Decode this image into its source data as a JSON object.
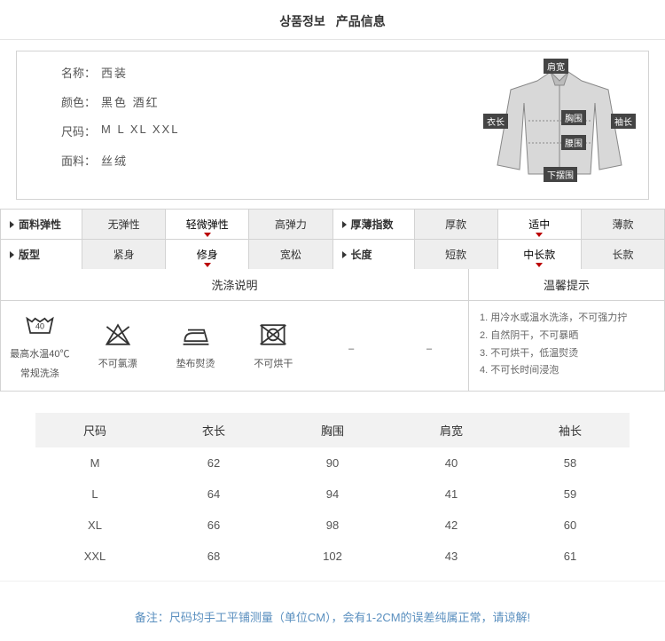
{
  "title": {
    "kr": "상품정보",
    "cn": "产品信息"
  },
  "info": {
    "name_label": "名称：",
    "name_value": "西装",
    "color_label": "颜色：",
    "color_value": "黑色   酒红",
    "size_label": "尺码：",
    "size_value": "M  L  XL   XXL",
    "fabric_label": "面料：",
    "fabric_value": "丝绒"
  },
  "diagram_tags": {
    "shoulder": "肩宽",
    "length": "衣长",
    "chest": "胸围",
    "waist": "腰围",
    "hem": "下摆围",
    "sleeve": "袖长"
  },
  "strip1": {
    "head": "面料弹性",
    "cells": [
      "无弹性",
      "轻微弹性",
      "高弹力"
    ],
    "active_index": 1,
    "head2": "厚薄指数",
    "cells2": [
      "厚款",
      "适中",
      "薄款"
    ],
    "active2_index": 1
  },
  "strip2": {
    "head": "版型",
    "cells": [
      "紧身",
      "修身",
      "宽松"
    ],
    "active_index": 1,
    "head2": "长度",
    "cells2": [
      "短款",
      "中长款",
      "长款"
    ],
    "active2_index": 1
  },
  "wash": {
    "title": "洗涤说明",
    "items": [
      {
        "label1": "最高水温40℃",
        "label2": "常规洗涤",
        "icon": "wash40"
      },
      {
        "label1": "不可氯漂",
        "label2": "",
        "icon": "nobleach"
      },
      {
        "label1": "垫布熨烫",
        "label2": "",
        "icon": "iron"
      },
      {
        "label1": "不可烘干",
        "label2": "",
        "icon": "notumble"
      },
      {
        "label1": "–",
        "label2": "",
        "icon": "dash"
      },
      {
        "label1": "–",
        "label2": "",
        "icon": "dash"
      }
    ]
  },
  "tips": {
    "title": "温馨提示",
    "lines": [
      "1. 用冷水或温水洗涤，不可强力拧",
      "2. 自然阴干，不可暴晒",
      "3. 不可烘干，低温熨烫",
      "4. 不可长时间浸泡"
    ]
  },
  "size_table": {
    "columns": [
      "尺码",
      "衣长",
      "胸围",
      "肩宽",
      "袖长"
    ],
    "rows": [
      [
        "M",
        "62",
        "90",
        "40",
        "58"
      ],
      [
        "L",
        "64",
        "94",
        "41",
        "59"
      ],
      [
        "XL",
        "66",
        "98",
        "42",
        "60"
      ],
      [
        "XXL",
        "68",
        "102",
        "43",
        "61"
      ]
    ]
  },
  "note": "备注：尺码均手工平铺测量（单位CM），会有1-2CM的误差纯属正常，请谅解!",
  "colors": {
    "border": "#d3d3d3",
    "header_bg": "#f2f2f2",
    "sel_bg": "#eeeeee",
    "text": "#333333",
    "muted": "#666666",
    "note": "#5a8fbf",
    "accent_arrow": "#b00000"
  }
}
